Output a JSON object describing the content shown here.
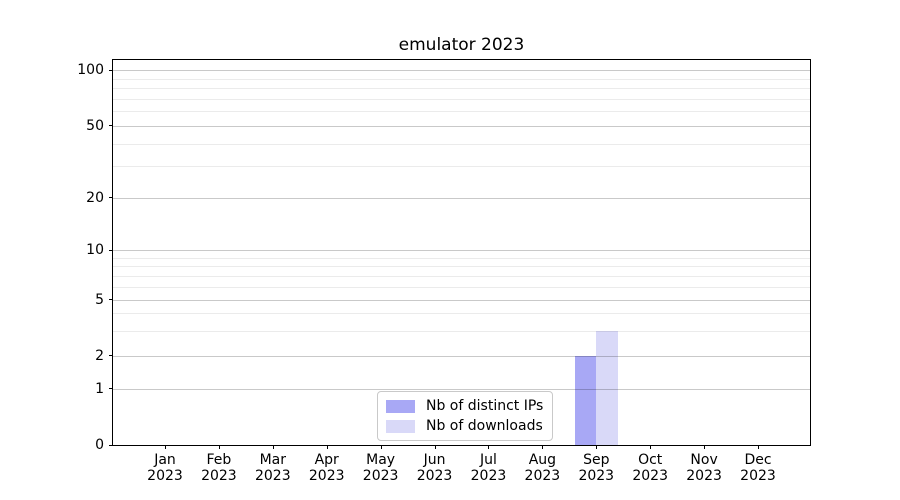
{
  "window": {
    "title": "emulator 2023"
  },
  "chart_data": {
    "type": "bar",
    "title": "emulator 2023",
    "xlabel": "",
    "ylabel": "",
    "categories": [
      "Jan",
      "Feb",
      "Mar",
      "Apr",
      "May",
      "Jun",
      "Jul",
      "Aug",
      "Sep",
      "Oct",
      "Nov",
      "Dec"
    ],
    "category_year": "2023",
    "series": [
      {
        "name": "Nb of distinct IPs",
        "color": "#a8a8f5",
        "values": [
          0,
          0,
          0,
          0,
          0,
          0,
          0,
          0,
          2,
          0,
          0,
          0
        ]
      },
      {
        "name": "Nb of downloads",
        "color": "#d9d9f8",
        "values": [
          0,
          0,
          0,
          0,
          0,
          0,
          0,
          0,
          3,
          0,
          0,
          0
        ]
      }
    ],
    "y_axis": {
      "scale": "log-like",
      "ticks": [
        0,
        1,
        2,
        5,
        10,
        20,
        50,
        100
      ],
      "minor_ticks": [
        3,
        4,
        6,
        7,
        8,
        9,
        30,
        40,
        60,
        70,
        80,
        90
      ],
      "ylim": [
        0,
        115
      ],
      "anchors": {
        "values": [
          0,
          1,
          2,
          5,
          10,
          20,
          50,
          100
        ],
        "fractions": [
          0,
          0.1455,
          0.2312,
          0.3779,
          0.5052,
          0.6416,
          0.8286,
          0.974
        ]
      }
    },
    "grid": {
      "major": true,
      "minor": true,
      "drawn_above_bars": true
    },
    "legend": {
      "position": "lower center"
    }
  },
  "colors": {
    "background": "#ffffff",
    "spine": "#000000",
    "text": "#000000",
    "major_grid": "rgba(0,0,0,0.21)",
    "minor_grid": "rgba(0,0,0,0.08)",
    "legend_border": "#c9c9c9"
  }
}
